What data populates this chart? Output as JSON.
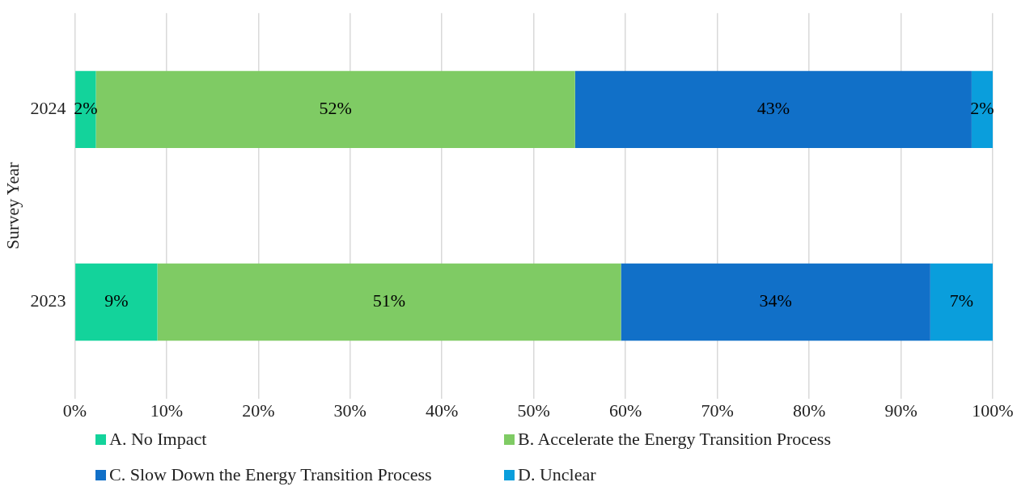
{
  "chart_data": {
    "type": "bar",
    "orientation": "horizontal",
    "stacked": true,
    "ylabel": "Survey Year",
    "categories": [
      "2024",
      "2023"
    ],
    "series": [
      {
        "name": "A. No Impact",
        "color": "#13d39b",
        "values": [
          2.3,
          9
        ],
        "value_labels": [
          "2%",
          "9%"
        ]
      },
      {
        "name": "B. Accelerate the Energy Transition Process",
        "color": "#7fcb64",
        "values": [
          52.2,
          50.5
        ],
        "value_labels": [
          "52%",
          "51%"
        ]
      },
      {
        "name": "C. Slow Down the Energy Transition Process",
        "color": "#1170c8",
        "values": [
          43.2,
          33.7
        ],
        "value_labels": [
          "43%",
          "34%"
        ]
      },
      {
        "name": "D. Unclear",
        "color": "#0a9edc",
        "values": [
          2.3,
          6.8
        ],
        "value_labels": [
          "2%",
          "7%"
        ]
      }
    ],
    "xlim": [
      0,
      100
    ],
    "xticks": [
      {
        "value": 0,
        "label": "0%"
      },
      {
        "value": 10,
        "label": "10%"
      },
      {
        "value": 20,
        "label": "20%"
      },
      {
        "value": 30,
        "label": "30%"
      },
      {
        "value": 40,
        "label": "40%"
      },
      {
        "value": 50,
        "label": "50%"
      },
      {
        "value": 60,
        "label": "60%"
      },
      {
        "value": 70,
        "label": "70%"
      },
      {
        "value": 80,
        "label": "80%"
      },
      {
        "value": 90,
        "label": "90%"
      },
      {
        "value": 100,
        "label": "100%"
      }
    ],
    "grid": "x",
    "legend": "bottom"
  }
}
